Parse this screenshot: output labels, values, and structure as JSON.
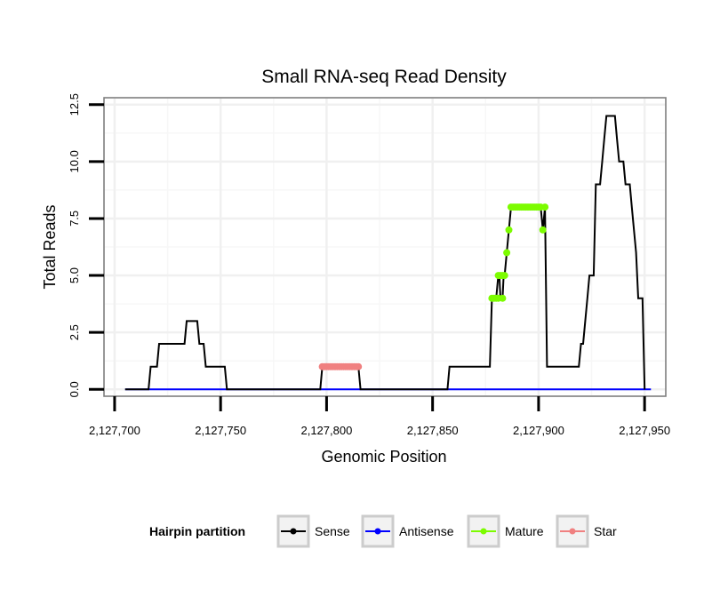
{
  "chart_data": {
    "type": "line",
    "title": "Small RNA-seq Read Density",
    "xlabel": "Genomic Position",
    "ylabel": "Total Reads",
    "xlim": [
      2127695,
      2127960
    ],
    "ylim": [
      -0.3,
      12.8
    ],
    "x_ticks": [
      2127700,
      2127750,
      2127800,
      2127850,
      2127900,
      2127950
    ],
    "x_tick_labels": [
      "2,127,700",
      "2,127,750",
      "2,127,800",
      "2,127,850",
      "2,127,900",
      "2,127,950"
    ],
    "y_ticks": [
      0,
      2.5,
      5,
      7.5,
      10,
      12.5
    ],
    "y_tick_labels": [
      "0.0",
      "2.5",
      "5.0",
      "7.5",
      "10.0",
      "12.5"
    ],
    "grid": true,
    "legend": {
      "title": "Hairpin partition",
      "position": "bottom",
      "entries": [
        "Sense",
        "Antisense",
        "Mature",
        "Star"
      ]
    },
    "series": [
      {
        "name": "Sense",
        "color": "#000000",
        "style": "line",
        "points": [
          [
            2127705,
            0
          ],
          [
            2127716,
            0
          ],
          [
            2127717,
            1
          ],
          [
            2127720,
            1
          ],
          [
            2127721,
            2
          ],
          [
            2127733,
            2
          ],
          [
            2127734,
            3
          ],
          [
            2127739,
            3
          ],
          [
            2127740,
            2
          ],
          [
            2127742,
            2
          ],
          [
            2127743,
            1
          ],
          [
            2127748,
            1
          ],
          [
            2127749,
            1
          ],
          [
            2127752,
            1
          ],
          [
            2127753,
            0
          ],
          [
            2127797,
            0
          ],
          [
            2127798,
            1
          ],
          [
            2127815,
            1
          ],
          [
            2127816,
            0
          ],
          [
            2127857,
            0
          ],
          [
            2127858,
            1
          ],
          [
            2127877,
            1
          ],
          [
            2127878,
            4
          ],
          [
            2127880,
            4
          ],
          [
            2127880.5,
            4.5
          ],
          [
            2127881,
            5
          ],
          [
            2127881.5,
            5
          ],
          [
            2127882,
            4
          ],
          [
            2127883,
            4
          ],
          [
            2127883.5,
            5
          ],
          [
            2127884,
            5
          ],
          [
            2127885,
            6
          ],
          [
            2127886,
            7
          ],
          [
            2127887,
            8
          ],
          [
            2127901,
            8
          ],
          [
            2127902,
            7
          ],
          [
            2127903,
            8
          ],
          [
            2127904,
            1
          ],
          [
            2127919,
            1
          ],
          [
            2127920,
            2
          ],
          [
            2127921,
            2
          ],
          [
            2127922,
            3
          ],
          [
            2127923,
            4
          ],
          [
            2127924,
            5
          ],
          [
            2127926,
            5
          ],
          [
            2127927,
            9
          ],
          [
            2127929,
            9
          ],
          [
            2127930,
            10
          ],
          [
            2127931,
            11
          ],
          [
            2127932,
            12
          ],
          [
            2127936,
            12
          ],
          [
            2127937,
            11
          ],
          [
            2127938,
            10
          ],
          [
            2127940,
            10
          ],
          [
            2127941,
            9
          ],
          [
            2127943,
            9
          ],
          [
            2127944,
            8
          ],
          [
            2127945,
            7
          ],
          [
            2127946,
            6
          ],
          [
            2127947,
            4
          ],
          [
            2127949,
            4
          ],
          [
            2127950,
            0
          ]
        ]
      },
      {
        "name": "Antisense",
        "color": "#0000ff",
        "style": "line",
        "points": [
          [
            2127705,
            0
          ],
          [
            2127953,
            0
          ]
        ]
      },
      {
        "name": "Mature",
        "color": "#7cfc00",
        "style": "points",
        "points": [
          [
            2127878,
            4
          ],
          [
            2127879,
            4
          ],
          [
            2127880,
            4
          ],
          [
            2127881,
            4
          ],
          [
            2127881,
            5
          ],
          [
            2127882,
            5
          ],
          [
            2127883,
            5
          ],
          [
            2127883,
            4
          ],
          [
            2127884,
            5
          ],
          [
            2127885,
            6
          ],
          [
            2127886,
            7
          ],
          [
            2127887,
            8
          ],
          [
            2127888,
            8
          ],
          [
            2127889,
            8
          ],
          [
            2127890,
            8
          ],
          [
            2127891,
            8
          ],
          [
            2127892,
            8
          ],
          [
            2127893,
            8
          ],
          [
            2127894,
            8
          ],
          [
            2127895,
            8
          ],
          [
            2127896,
            8
          ],
          [
            2127897,
            8
          ],
          [
            2127898,
            8
          ],
          [
            2127899,
            8
          ],
          [
            2127900,
            8
          ],
          [
            2127901,
            8
          ],
          [
            2127902,
            7
          ],
          [
            2127903,
            8
          ]
        ]
      },
      {
        "name": "Star",
        "color": "#f08080",
        "style": "points",
        "points": [
          [
            2127798,
            1
          ],
          [
            2127799,
            1
          ],
          [
            2127800,
            1
          ],
          [
            2127801,
            1
          ],
          [
            2127802,
            1
          ],
          [
            2127803,
            1
          ],
          [
            2127804,
            1
          ],
          [
            2127805,
            1
          ],
          [
            2127806,
            1
          ],
          [
            2127807,
            1
          ],
          [
            2127808,
            1
          ],
          [
            2127809,
            1
          ],
          [
            2127810,
            1
          ],
          [
            2127811,
            1
          ],
          [
            2127812,
            1
          ],
          [
            2127813,
            1
          ],
          [
            2127814,
            1
          ],
          [
            2127815,
            1
          ]
        ]
      }
    ]
  }
}
